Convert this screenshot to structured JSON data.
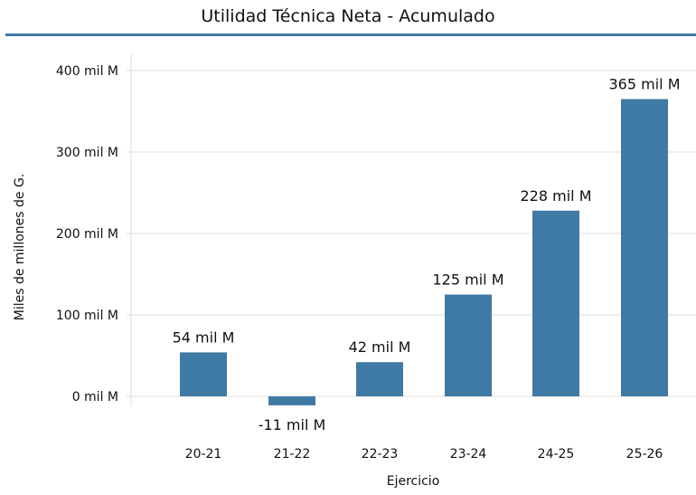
{
  "chart_data": {
    "type": "bar",
    "title": "Utilidad Técnica Neta - Acumulado",
    "xlabel": "Ejercicio",
    "ylabel": "Miles de millones de G.",
    "categories": [
      "20-21",
      "21-22",
      "22-23",
      "23-24",
      "24-25",
      "25-26"
    ],
    "values": [
      54,
      -11,
      42,
      125,
      228,
      365
    ],
    "data_labels": [
      "54 mil M",
      "-11 mil M",
      "42 mil M",
      "125 mil M",
      "228 mil M",
      "365 mil M"
    ],
    "yticks": [
      0,
      100,
      200,
      300,
      400
    ],
    "ytick_labels": [
      "0 mil M",
      "100 mil M",
      "200 mil M",
      "300 mil M",
      "400 mil M"
    ],
    "ylim": [
      -11,
      400
    ],
    "grid": true,
    "legend": "none",
    "colors": {
      "bar": "#3f7aa5",
      "title_rule": "#3f7aa5",
      "grid": "#dddddd"
    }
  }
}
